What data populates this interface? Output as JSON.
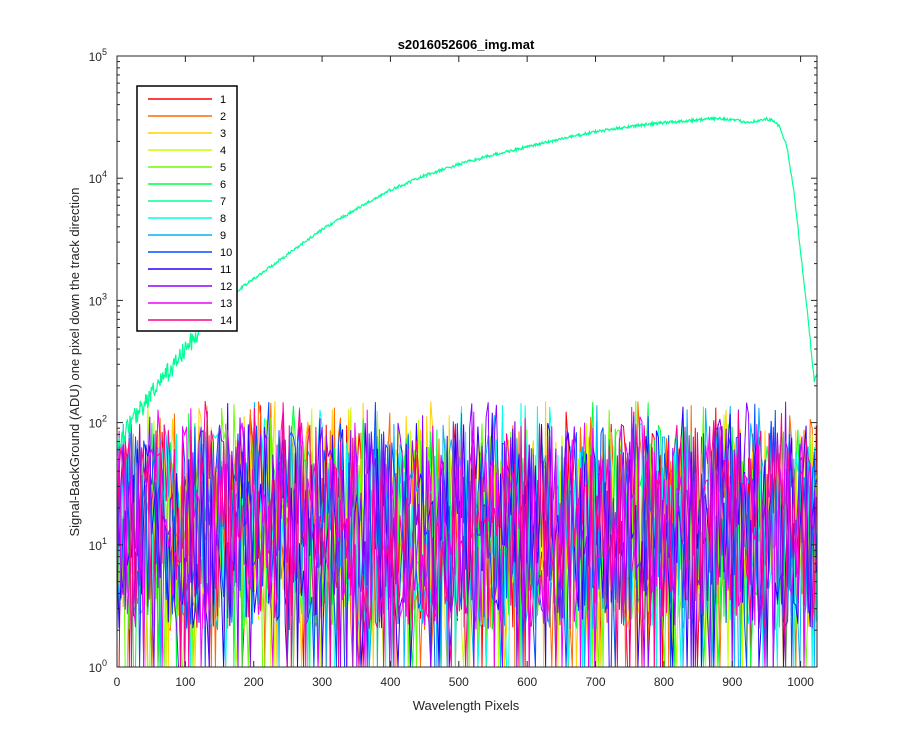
{
  "chart_data": {
    "type": "line",
    "title": "s2016052606_img.mat",
    "xlabel": "Wavelength Pixels",
    "ylabel": "Signal-BackGround (ADU) one pixel down the track direction",
    "xlim": [
      0,
      1024
    ],
    "ylim": [
      1,
      100000
    ],
    "yscale": "log",
    "x_ticks": [
      0,
      100,
      200,
      300,
      400,
      500,
      600,
      700,
      800,
      900,
      1000
    ],
    "y_tick_mantissa": "10",
    "y_tick_exponents": [
      "0",
      "1",
      "2",
      "3",
      "4",
      "5"
    ],
    "grid": false,
    "legend_position": "top-left",
    "noise_band": {
      "typical_range": [
        2,
        100
      ],
      "peak": 150,
      "x_range": [
        0,
        1024
      ]
    },
    "series": [
      {
        "name": "1",
        "color": "#ff0000",
        "kind": "noise"
      },
      {
        "name": "2",
        "color": "#ff6a00",
        "kind": "noise"
      },
      {
        "name": "3",
        "color": "#ffd200",
        "kind": "noise"
      },
      {
        "name": "4",
        "color": "#c8ff00",
        "kind": "noise"
      },
      {
        "name": "5",
        "color": "#6aff00",
        "kind": "noise"
      },
      {
        "name": "6",
        "color": "#00ff3c",
        "kind": "noise"
      },
      {
        "name": "7",
        "color": "#00ff96",
        "kind": "signal",
        "x": [
          0,
          10,
          20,
          30,
          40,
          50,
          60,
          70,
          80,
          90,
          100,
          120,
          140,
          160,
          180,
          200,
          250,
          300,
          350,
          400,
          450,
          500,
          550,
          600,
          650,
          700,
          750,
          800,
          850,
          880,
          900,
          920,
          940,
          950,
          960,
          970,
          980,
          990,
          1000,
          1010,
          1020,
          1024
        ],
        "y": [
          60,
          80,
          100,
          120,
          140,
          170,
          200,
          240,
          280,
          330,
          400,
          550,
          750,
          1000,
          1250,
          1500,
          2400,
          3800,
          5600,
          8000,
          10500,
          13000,
          15500,
          18000,
          21000,
          24000,
          26500,
          28500,
          30000,
          31000,
          30000,
          28800,
          29500,
          30500,
          29500,
          26000,
          18000,
          8000,
          2500,
          800,
          220,
          250
        ]
      },
      {
        "name": "8",
        "color": "#00ffe8",
        "kind": "noise"
      },
      {
        "name": "9",
        "color": "#00b2ff",
        "kind": "noise"
      },
      {
        "name": "10",
        "color": "#0050ff",
        "kind": "noise"
      },
      {
        "name": "11",
        "color": "#2a00ff",
        "kind": "noise"
      },
      {
        "name": "12",
        "color": "#9000ff",
        "kind": "noise"
      },
      {
        "name": "13",
        "color": "#f000ff",
        "kind": "noise"
      },
      {
        "name": "14",
        "color": "#ff0090",
        "kind": "noise"
      }
    ]
  }
}
